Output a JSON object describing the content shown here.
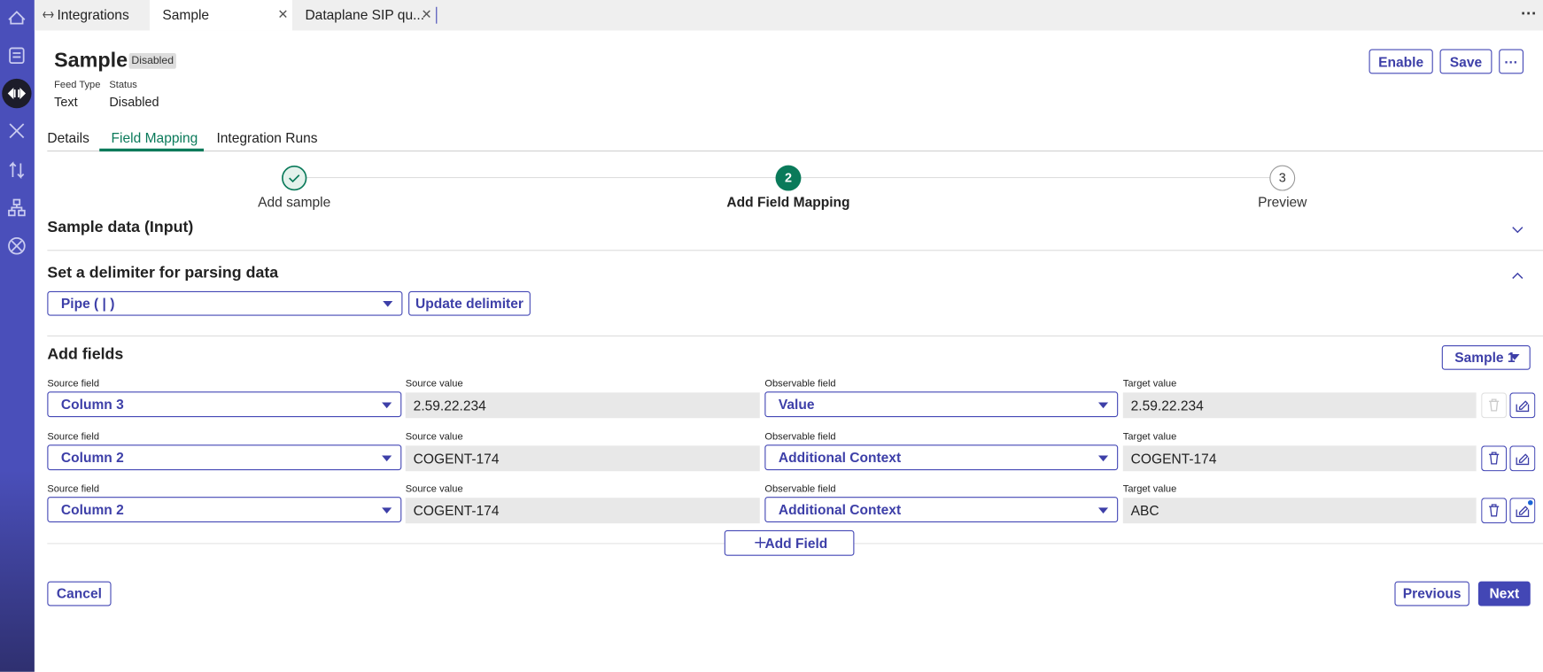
{
  "tabs": [
    "Integrations",
    "Sample",
    "Dataplane SIP qu..."
  ],
  "header": {
    "title": "Sample",
    "badge": "Disabled",
    "meta": [
      {
        "label": "Feed Type",
        "value": "Text"
      },
      {
        "label": "Status",
        "value": "Disabled"
      }
    ],
    "actions": [
      "Enable",
      "Save"
    ]
  },
  "nav": {
    "items": [
      "Details",
      "Field Mapping",
      "Integration Runs"
    ],
    "active": 1
  },
  "steps": [
    {
      "label": "Add sample"
    },
    {
      "number": 2,
      "label": "Add Field Mapping"
    },
    {
      "number": 3,
      "label": "Preview"
    }
  ],
  "sample_data": {
    "title": "Sample data (Input)"
  },
  "delimiter": {
    "title": "Set a delimiter for parsing data",
    "selected": "Pipe ( | )",
    "button": "Update delimiter"
  },
  "fields": {
    "title": "Add fields",
    "sample": "Sample 1",
    "rows": [
      {
        "source_field": {
          "label": "Source field",
          "value": "Column 3"
        },
        "source_value": {
          "label": "Source value",
          "value": "2.59.22.234"
        },
        "observable_field": {
          "label": "Observable field",
          "value": "Value"
        },
        "target_value": {
          "label": "Target value",
          "value": "2.59.22.234"
        }
      },
      {
        "source_field": {
          "label": "Source field",
          "value": "Column 2"
        },
        "source_value": {
          "label": "Source value",
          "value": "COGENT-174"
        },
        "observable_field": {
          "label": "Observable field",
          "value": "Additional Context"
        },
        "target_value": {
          "label": "Target value",
          "value": "COGENT-174"
        }
      },
      {
        "source_field": {
          "label": "Source field",
          "value": "Column 2"
        },
        "source_value": {
          "label": "Source value",
          "value": "COGENT-174"
        },
        "observable_field": {
          "label": "Observable field",
          "value": "Additional Context"
        },
        "target_value": {
          "label": "Target value",
          "value": "ABC"
        }
      }
    ],
    "add_button": "Add Field"
  },
  "footer": {
    "cancel": "Cancel",
    "previous": "Previous",
    "next": "Next"
  }
}
